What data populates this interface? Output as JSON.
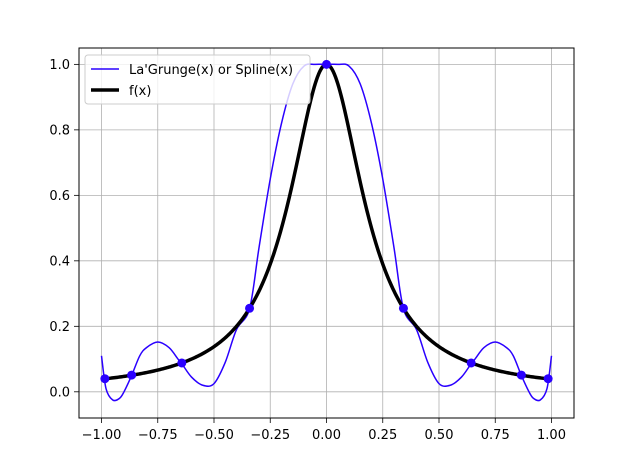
{
  "chart_data": {
    "type": "line",
    "title": "",
    "xlabel": "",
    "ylabel": "",
    "xlim": [
      -1.1,
      1.1
    ],
    "ylim": [
      -0.08,
      1.05
    ],
    "x_ticks": [
      -1.0,
      -0.75,
      -0.5,
      -0.25,
      0.0,
      0.25,
      0.5,
      0.75,
      1.0
    ],
    "x_tick_labels": [
      "−1.00",
      "−0.75",
      "−0.50",
      "−0.25",
      "0.00",
      "0.25",
      "0.50",
      "0.75",
      "1.00"
    ],
    "y_ticks": [
      0.0,
      0.2,
      0.4,
      0.6,
      0.8,
      1.0
    ],
    "y_tick_labels": [
      "0.0",
      "0.2",
      "0.4",
      "0.6",
      "0.8",
      "1.0"
    ],
    "grid": true,
    "legend_position": "top-left",
    "series": [
      {
        "name": "La'Grunge(x) or Spline(x)",
        "color": "#2a00ff",
        "style": "thin-line",
        "x": [
          -1.0,
          -0.98,
          -0.95,
          -0.92,
          -0.9,
          -0.866,
          -0.83,
          -0.8,
          -0.75,
          -0.7,
          -0.66,
          -0.643,
          -0.6,
          -0.55,
          -0.5,
          -0.45,
          -0.4,
          -0.342,
          -0.3,
          -0.25,
          -0.2,
          -0.15,
          -0.1,
          -0.05,
          0.0,
          0.05,
          0.1,
          0.15,
          0.2,
          0.25,
          0.3,
          0.342,
          0.4,
          0.45,
          0.5,
          0.55,
          0.6,
          0.643,
          0.66,
          0.7,
          0.75,
          0.8,
          0.83,
          0.866,
          0.9,
          0.92,
          0.95,
          0.98,
          1.0
        ],
        "y": [
          0.11,
          0.01,
          -0.025,
          -0.02,
          0.0,
          0.05,
          0.11,
          0.135,
          0.152,
          0.135,
          0.1,
          0.086,
          0.045,
          0.02,
          0.025,
          0.09,
          0.19,
          0.254,
          0.44,
          0.65,
          0.82,
          0.94,
          0.995,
          1.0,
          1.0,
          1.0,
          0.995,
          0.94,
          0.82,
          0.65,
          0.44,
          0.254,
          0.19,
          0.09,
          0.025,
          0.02,
          0.045,
          0.086,
          0.1,
          0.135,
          0.152,
          0.135,
          0.11,
          0.05,
          0.0,
          -0.02,
          -0.025,
          0.01,
          0.11
        ]
      },
      {
        "name": "f(x)",
        "color": "#000000",
        "style": "thick-line",
        "function": "1/(1+25x^2)",
        "x_range": [
          -1.0,
          1.0
        ]
      }
    ],
    "points": {
      "color": "#2a00ff",
      "x": [
        -0.985,
        -0.866,
        -0.643,
        -0.342,
        0.0,
        0.342,
        0.643,
        0.866,
        0.985
      ],
      "y": [
        0.04,
        0.051,
        0.088,
        0.255,
        1.0,
        0.255,
        0.088,
        0.051,
        0.04
      ]
    }
  }
}
